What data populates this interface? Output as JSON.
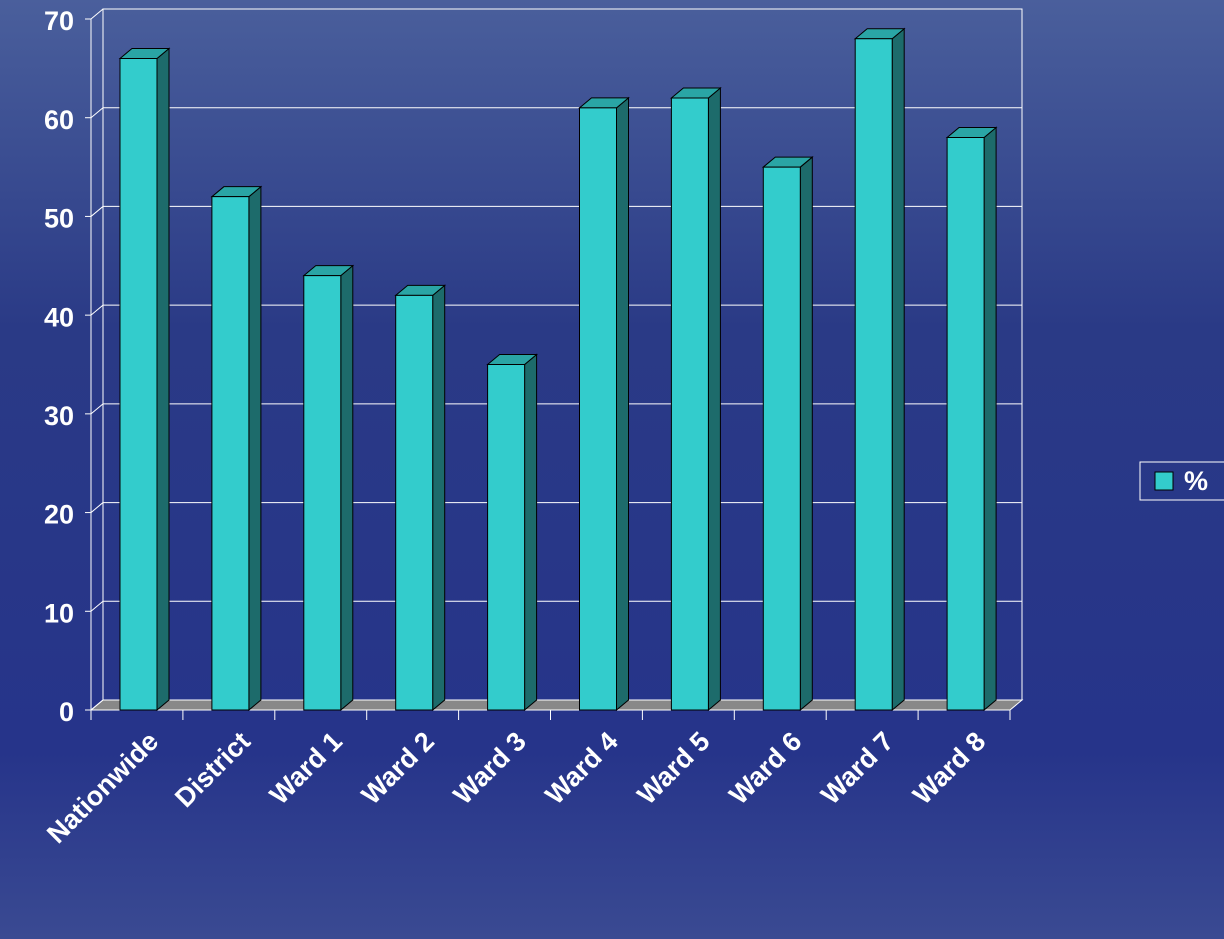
{
  "chart_data": {
    "type": "bar3d",
    "categories": [
      "Nationwide",
      "District",
      "Ward 1",
      "Ward 2",
      "Ward 3",
      "Ward 4",
      "Ward 5",
      "Ward 6",
      "Ward 7",
      "Ward 8"
    ],
    "series": [
      {
        "name": "%",
        "color": "#33cccc",
        "values": [
          66,
          52,
          44,
          42,
          35,
          61,
          62,
          55,
          68,
          58
        ]
      }
    ],
    "ylim": [
      0,
      70
    ],
    "yticks": [
      0,
      10,
      20,
      30,
      40,
      50,
      60,
      70
    ],
    "grid": true,
    "legend": "right"
  }
}
